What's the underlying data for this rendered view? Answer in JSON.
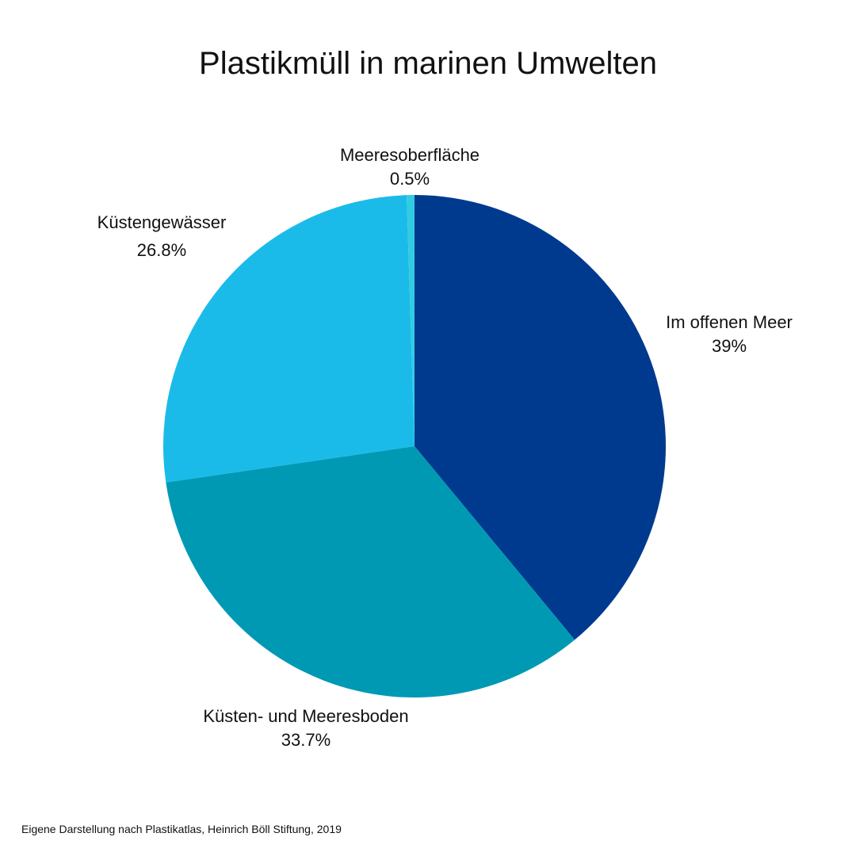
{
  "chart_data": {
    "type": "pie",
    "title": "Plastikmüll in marinen Umwelten",
    "slices": [
      {
        "label": "Im offenen Meer",
        "value": 39,
        "value_label": "39%",
        "color": "#003A8F"
      },
      {
        "label": "Küsten- und Meeresboden",
        "value": 33.7,
        "value_label": "33.7%",
        "color": "#0099B4"
      },
      {
        "label": "Küstengewässer",
        "value": 26.8,
        "value_label": "26.8%",
        "color": "#1BBBE9"
      },
      {
        "label": "Meeresoberfläche",
        "value": 0.5,
        "value_label": "0.5%",
        "color": "#32CCE1"
      }
    ],
    "start_angle_deg": 0,
    "direction": "clockwise"
  },
  "source_note": "Eigene Darstellung nach Plastikatlas, Heinrich Böll Stiftung, 2019"
}
